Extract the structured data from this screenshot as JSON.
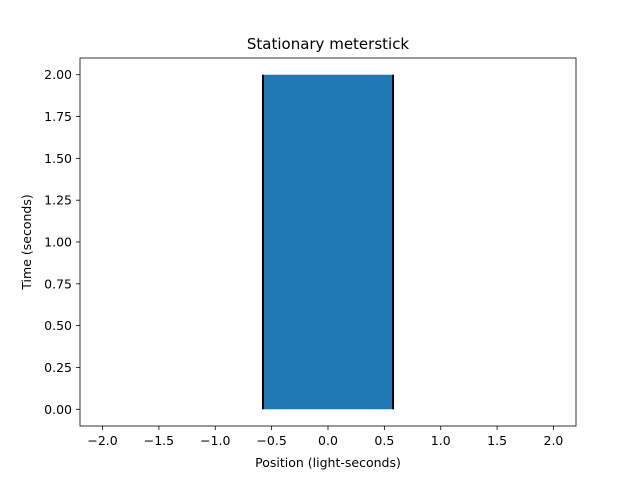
{
  "chart_data": {
    "type": "area",
    "title": "Stationary meterstick",
    "xlabel": "Position (light-seconds)",
    "ylabel": "Time (seconds)",
    "xlim": [
      -2.2,
      2.2
    ],
    "ylim": [
      -0.1,
      2.1
    ],
    "xticks": [
      -2.0,
      -1.5,
      -1.0,
      -0.5,
      0.0,
      0.5,
      1.0,
      1.5,
      2.0
    ],
    "xtick_labels": [
      "−2.0",
      "−1.5",
      "−1.0",
      "−0.5",
      "0.0",
      "0.5",
      "1.0",
      "1.5",
      "2.0"
    ],
    "yticks": [
      0.0,
      0.25,
      0.5,
      0.75,
      1.0,
      1.25,
      1.5,
      1.75,
      2.0
    ],
    "ytick_labels": [
      "0.00",
      "0.25",
      "0.50",
      "0.75",
      "1.00",
      "1.25",
      "1.50",
      "1.75",
      "2.00"
    ],
    "grid": false,
    "region": {
      "x": [
        -0.577,
        0.577
      ],
      "y": [
        0.0,
        2.0
      ],
      "fill": "#1f77b4"
    },
    "boundaries": [
      {
        "x": [
          -0.577,
          -0.577
        ],
        "y": [
          0.0,
          2.0
        ],
        "color": "#000000"
      },
      {
        "x": [
          0.577,
          0.577
        ],
        "y": [
          0.0,
          2.0
        ],
        "color": "#000000"
      }
    ]
  }
}
